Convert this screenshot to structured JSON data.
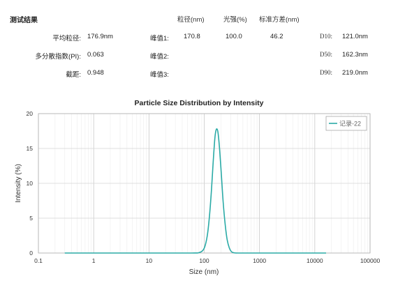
{
  "results": {
    "heading": "测试结果",
    "columns": {
      "size": "粒径(nm)",
      "intensity": "光强(%)",
      "std": "标准方差(nm)"
    },
    "z_average": {
      "label": "平均粒径:",
      "value": "176.9nm"
    },
    "pdi": {
      "label": "多分散指数(PI):",
      "value": "0.063"
    },
    "intercept": {
      "label": "截距:",
      "value": "0.948"
    },
    "peaks": [
      {
        "label": "峰值1:",
        "size": "170.8",
        "intensity": "100.0",
        "std": "46.2"
      },
      {
        "label": "峰值2:",
        "size": "",
        "intensity": "",
        "std": ""
      },
      {
        "label": "峰值3:",
        "size": "",
        "intensity": "",
        "std": ""
      }
    ],
    "d_values": [
      {
        "label": "D10:",
        "value": "121.0nm"
      },
      {
        "label": "D50:",
        "value": "162.3nm"
      },
      {
        "label": "D90:",
        "value": "219.0nm"
      }
    ]
  },
  "chart_data": {
    "type": "line",
    "title": "Particle Size Distribution by Intensity",
    "xlabel": "Size (nm)",
    "ylabel": "Intensity (%)",
    "x_scale": "log",
    "xlim": [
      0.1,
      100000
    ],
    "ylim": [
      0,
      20
    ],
    "x_ticks": [
      0.1,
      1,
      10,
      100,
      1000,
      10000,
      100000
    ],
    "x_tick_labels": [
      "0.1",
      "1",
      "10",
      "100",
      "1000",
      "10000",
      "100000"
    ],
    "y_ticks": [
      0,
      5,
      10,
      15,
      20
    ],
    "y_tick_labels": [
      "0",
      "5",
      "10",
      "15",
      "20"
    ],
    "grid": true,
    "legend_position": "top-right",
    "series": [
      {
        "name": "记录-22",
        "color": "#2aaaa6",
        "x": [
          0.3,
          1,
          10,
          60,
          80,
          95,
          105,
          115,
          125,
          135,
          145,
          155,
          162,
          170,
          178,
          190,
          205,
          220,
          240,
          260,
          285,
          310,
          340,
          400,
          1000,
          16000
        ],
        "y": [
          0,
          0,
          0,
          0,
          0.05,
          0.4,
          1.2,
          2.8,
          5.5,
          9.0,
          13.0,
          16.3,
          17.5,
          17.8,
          17.2,
          14.8,
          11.0,
          7.3,
          4.0,
          1.9,
          0.7,
          0.2,
          0.05,
          0,
          0,
          0
        ]
      }
    ]
  }
}
